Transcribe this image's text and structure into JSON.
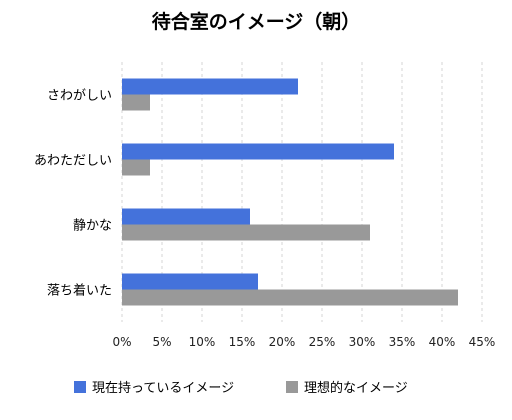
{
  "chart_data": {
    "type": "bar",
    "orientation": "horizontal",
    "title": "待合室のイメージ（朝）",
    "categories": [
      "さわがしい",
      "あわただしい",
      "静かな",
      "落ち着いた"
    ],
    "series": [
      {
        "name": "現在持っているイメージ",
        "color": "#4472db",
        "values": [
          22,
          34,
          16,
          17
        ]
      },
      {
        "name": "理想的なイメージ",
        "color": "#999999",
        "values": [
          3.5,
          3.5,
          31,
          42
        ]
      }
    ],
    "xlim": [
      0,
      45
    ],
    "x_ticks": [
      "0%",
      "5%",
      "10%",
      "15%",
      "20%",
      "25%",
      "30%",
      "35%",
      "40%",
      "45%"
    ],
    "x_unit": "%",
    "grid": "vertical dashed",
    "legend_position": "bottom"
  }
}
